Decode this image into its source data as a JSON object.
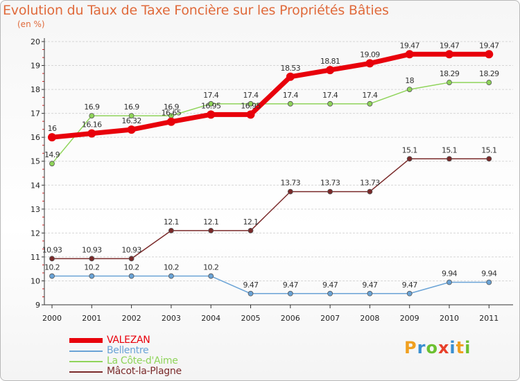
{
  "chart_data": {
    "type": "line",
    "title": "Evolution du Taux de Taxe Foncière sur les Propriétés Bâties",
    "ylabel": "(en %)",
    "xlabel": "",
    "categories": [
      "2000",
      "2001",
      "2002",
      "2003",
      "2004",
      "2005",
      "2006",
      "2007",
      "2008",
      "2009",
      "2010",
      "2011"
    ],
    "ylim": [
      9,
      20
    ],
    "yticks": [
      "9",
      "10",
      "11",
      "12",
      "13",
      "14",
      "15",
      "16",
      "17",
      "18",
      "19",
      "20"
    ],
    "grid": "horizontal",
    "series": [
      {
        "name": "VALEZAN",
        "color": "#e8000b",
        "values": [
          16,
          16.16,
          16.32,
          16.65,
          16.95,
          16.95,
          18.53,
          18.81,
          19.09,
          19.47,
          19.47,
          19.47
        ],
        "labels": [
          "16",
          "16.16",
          "16.32",
          "16.65",
          "16.95",
          "16.95",
          "18.53",
          "18.81",
          "19.09",
          "19.47",
          "19.47",
          "19.47"
        ]
      },
      {
        "name": "Bellentre",
        "color": "#6aa3d6",
        "values": [
          10.2,
          10.2,
          10.2,
          10.2,
          10.2,
          9.47,
          9.47,
          9.47,
          9.47,
          9.47,
          9.94,
          9.94
        ],
        "labels": [
          "10.2",
          "10.2",
          "10.2",
          "10.2",
          "10.2",
          "9.47",
          "9.47",
          "9.47",
          "9.47",
          "9.47",
          "9.94",
          "9.94"
        ]
      },
      {
        "name": "La Côte-d'Aime",
        "color": "#8fd45a",
        "values": [
          14.9,
          16.9,
          16.9,
          16.9,
          17.4,
          17.4,
          17.4,
          17.4,
          17.4,
          18,
          18.29,
          18.29
        ],
        "labels": [
          "14.9",
          "16.9",
          "16.9",
          "16.9",
          "17.4",
          "17.4",
          "17.4",
          "17.4",
          "17.4",
          "18",
          "18.29",
          "18.29"
        ]
      },
      {
        "name": "Mâcot-la-Plagne",
        "color": "#7a2a2a",
        "values": [
          10.93,
          10.93,
          10.93,
          12.1,
          12.1,
          12.1,
          13.73,
          13.73,
          13.73,
          15.1,
          15.1,
          15.1
        ],
        "labels": [
          "10.93",
          "10.93",
          "10.93",
          "12.1",
          "12.1",
          "12.1",
          "13.73",
          "13.73",
          "13.73",
          "15.1",
          "15.1",
          "15.1"
        ]
      }
    ]
  },
  "brand": {
    "letters": [
      "P",
      "r",
      "o",
      "x",
      "i",
      "t",
      "i"
    ],
    "colors": [
      "#f0a020",
      "#3a8fd0",
      "#6cc030",
      "#e8402a",
      "#3a8fd0",
      "#f0a020",
      "#6cc030"
    ]
  }
}
